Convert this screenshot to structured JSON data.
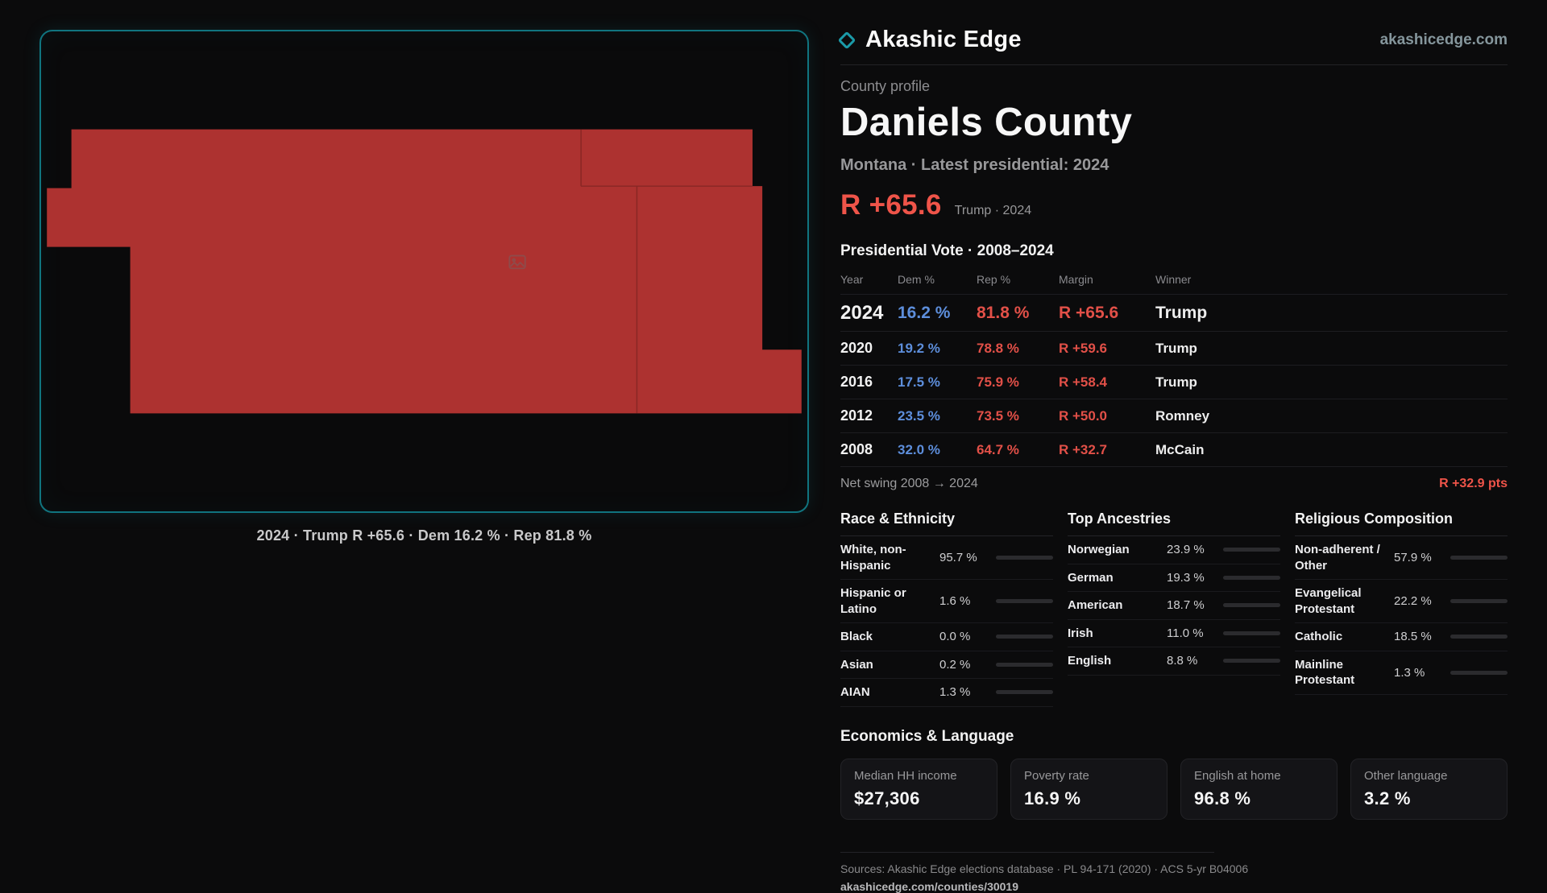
{
  "colors": {
    "background": "#0b0b0c",
    "panel_border": "#10747f",
    "county_fill": "#ad3230",
    "county_line": "#7c2421",
    "accent_red": "#ef5449",
    "dem_blue": "#5d8edb",
    "rep_red": "#e25048",
    "bar_track": "#2b2b2e"
  },
  "header": {
    "brand": "Akashic Edge",
    "domain": "akashicedge.com",
    "logo_icon": "diamond-outline-icon"
  },
  "profile": {
    "kicker": "County profile",
    "title": "Daniels County",
    "subtitle": "Montana · Latest presidential: 2024",
    "margin_value": "R +65.6",
    "margin_caption": "Trump · 2024"
  },
  "map": {
    "caption": "2024 · Trump R +65.6 · Dem 16.2 % · Rep 81.8 %"
  },
  "votes": {
    "heading": "Presidential Vote · 2008–2024",
    "columns": [
      "Year",
      "Dem %",
      "Rep %",
      "Margin",
      "Winner"
    ],
    "rows": [
      {
        "year": "2024",
        "dem": "16.2 %",
        "rep": "81.8 %",
        "margin": "R +65.6",
        "winner": "Trump",
        "emphasized": true
      },
      {
        "year": "2020",
        "dem": "19.2 %",
        "rep": "78.8 %",
        "margin": "R +59.6",
        "winner": "Trump",
        "emphasized": false
      },
      {
        "year": "2016",
        "dem": "17.5 %",
        "rep": "75.9 %",
        "margin": "R +58.4",
        "winner": "Trump",
        "emphasized": false
      },
      {
        "year": "2012",
        "dem": "23.5 %",
        "rep": "73.5 %",
        "margin": "R +50.0",
        "winner": "Romney",
        "emphasized": false
      },
      {
        "year": "2008",
        "dem": "32.0 %",
        "rep": "64.7 %",
        "margin": "R +32.7",
        "winner": "McCain",
        "emphasized": false
      }
    ],
    "net_swing_label": "Net swing 2008 → 2024",
    "net_swing_value": "R +32.9 pts"
  },
  "demographics": {
    "race": {
      "title": "Race & Ethnicity",
      "rows": [
        {
          "label": "White, non-Hispanic",
          "value": "95.7 %",
          "pct": 95.7,
          "color": "#c6cbd2"
        },
        {
          "label": "Hispanic or Latino",
          "value": "1.6 %",
          "pct": 1.6,
          "color": "#c8643c"
        },
        {
          "label": "Black",
          "value": "0.0 %",
          "pct": 0,
          "color": "#9aa0a8"
        },
        {
          "label": "Asian",
          "value": "0.2 %",
          "pct": 0.2,
          "color": "#9aa0a8"
        },
        {
          "label": "AIAN",
          "value": "1.3 %",
          "pct": 1.3,
          "color": "#c8643c"
        }
      ]
    },
    "ancestries": {
      "title": "Top Ancestries",
      "rows": [
        {
          "label": "Norwegian",
          "value": "23.9 %",
          "pct": 23.9,
          "color": "#9aa0a8"
        },
        {
          "label": "German",
          "value": "19.3 %",
          "pct": 19.3,
          "color": "#9aa0a8"
        },
        {
          "label": "American",
          "value": "18.7 %",
          "pct": 18.7,
          "color": "#9aa0a8"
        },
        {
          "label": "Irish",
          "value": "11.0 %",
          "pct": 11.0,
          "color": "#9aa0a8"
        },
        {
          "label": "English",
          "value": "8.8 %",
          "pct": 8.8,
          "color": "#9aa0a8"
        }
      ]
    },
    "religion": {
      "title": "Religious Composition",
      "rows": [
        {
          "label": "Non-adherent / Other",
          "value": "57.9 %",
          "pct": 57.9,
          "color": "#9aa0a8"
        },
        {
          "label": "Evangelical Protestant",
          "value": "22.2 %",
          "pct": 22.2,
          "color": "#e0666a"
        },
        {
          "label": "Catholic",
          "value": "18.5 %",
          "pct": 18.5,
          "color": "#e3b93f"
        },
        {
          "label": "Mainline Protestant",
          "value": "1.3 %",
          "pct": 1.3,
          "color": "#9aa0a8"
        }
      ]
    }
  },
  "economics": {
    "heading": "Economics & Language",
    "cards": [
      {
        "label": "Median HH income",
        "value": "$27,306"
      },
      {
        "label": "Poverty rate",
        "value": "16.9 %"
      },
      {
        "label": "English at home",
        "value": "96.8 %"
      },
      {
        "label": "Other language",
        "value": "3.2 %"
      }
    ]
  },
  "footer": {
    "sources": "Sources: Akashic Edge elections database · PL 94-171 (2020) · ACS 5-yr B04006",
    "url": "akashicedge.com/counties/30019"
  }
}
